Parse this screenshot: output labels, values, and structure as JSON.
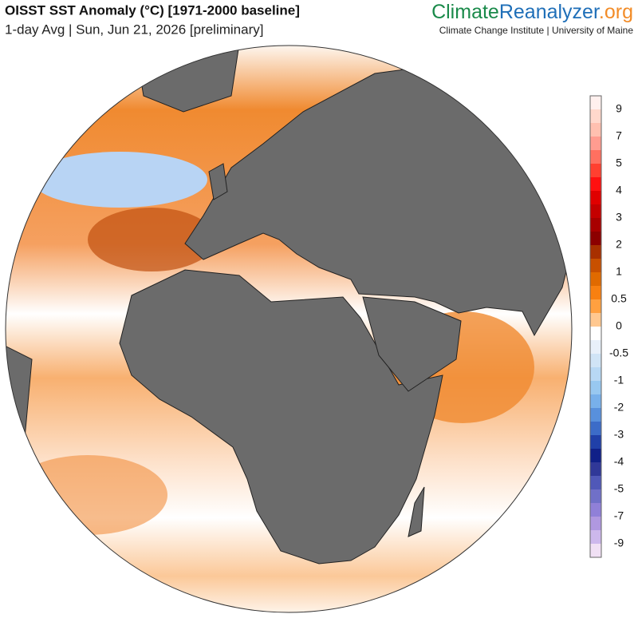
{
  "header": {
    "title": "OISST SST Anomaly (°C) [1971-2000 baseline]",
    "subtitle": "1-day Avg | Sun, Jun 21, 2026 [preliminary]",
    "logo": {
      "part1": "Climate",
      "part2": "Reanalyzer",
      "part3": ".org"
    },
    "institute": "Climate Change Institute | University of Maine"
  },
  "colorbar": {
    "labels": [
      9,
      7,
      5,
      4,
      3,
      2,
      1,
      0.5,
      0,
      -0.5,
      -1,
      -2,
      -3,
      -4,
      -5,
      -7,
      -9
    ],
    "colors": [
      "#fff0ee",
      "#ffd8cc",
      "#ffc0b0",
      "#ff9c90",
      "#ff7060",
      "#ff4030",
      "#ff1010",
      "#e00000",
      "#c40000",
      "#a80000",
      "#8c0000",
      "#a83000",
      "#c85000",
      "#e06a00",
      "#f88010",
      "#ffa040",
      "#ffc890",
      "#ffffff",
      "#e8f0fa",
      "#d0e4f6",
      "#b8d8f4",
      "#98c8f0",
      "#78b0ea",
      "#5890dc",
      "#3c6cc8",
      "#2040a8",
      "#102088",
      "#303898",
      "#5058b8",
      "#7070c8",
      "#9080d8",
      "#b098e0",
      "#cdb8ec",
      "#f0e0f4"
    ]
  }
}
